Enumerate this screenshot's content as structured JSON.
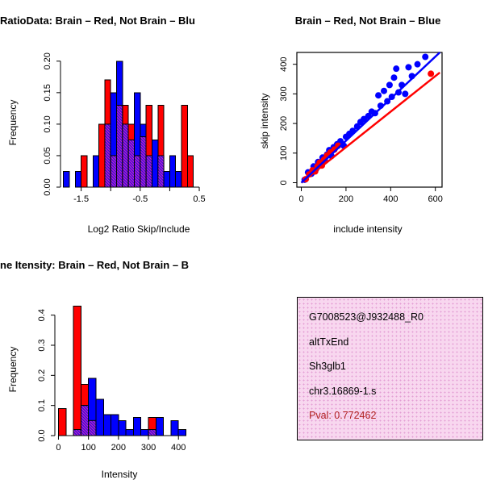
{
  "figure": {
    "background": "#FFFFFF"
  },
  "info_box": {
    "background": "#F8D7EF",
    "dot_color": "#E39FD4",
    "border_color": "#000000",
    "lines": [
      {
        "text": "G7008523@J932488_R0",
        "color": "#000000"
      },
      {
        "text": "altTxEnd",
        "color": "#000000"
      },
      {
        "text": "Sh3glb1",
        "color": "#000000"
      },
      {
        "text": "chr3.16869-1.s",
        "color": "#000000"
      },
      {
        "text": "Pval: 0.772462",
        "color": "#B22222"
      }
    ]
  },
  "chart_data": [
    {
      "id": "log2_ratio_histogram",
      "type": "bar",
      "variant": "overlaid-histograms",
      "title": "RatioData: Brain – Red, Not Brain – Blu",
      "xlabel": "Log2 Ratio Skip/Include",
      "ylabel": "Frequency",
      "xlim": [
        -1.85,
        0.65
      ],
      "ylim": [
        0,
        0.21
      ],
      "bin_width": 0.1,
      "xticks": [
        {
          "v": -1.5,
          "label": "-1.5"
        },
        {
          "v": -1.0,
          "label": ""
        },
        {
          "v": -0.5,
          "label": "-0.5"
        },
        {
          "v": 0.0,
          "label": ""
        },
        {
          "v": 0.5,
          "label": "0.5"
        }
      ],
      "yticks": [
        {
          "v": 0.0,
          "label": "0.00"
        },
        {
          "v": 0.05,
          "label": "0.05"
        },
        {
          "v": 0.1,
          "label": "0.10"
        },
        {
          "v": 0.15,
          "label": "0.15"
        },
        {
          "v": 0.2,
          "label": "0.20"
        }
      ],
      "overlap": {
        "fill": "#7A1FA2",
        "line": "#CC22CC"
      },
      "series": [
        {
          "name": "not_brain",
          "color": "#0000FF",
          "bins": [
            [
              -1.8,
              0.025
            ],
            [
              -1.6,
              0.025
            ],
            [
              -1.3,
              0.05
            ],
            [
              -1.1,
              0.1
            ],
            [
              -1.0,
              0.15
            ],
            [
              -0.9,
              0.2
            ],
            [
              -0.8,
              0.1
            ],
            [
              -0.7,
              0.075
            ],
            [
              -0.6,
              0.15
            ],
            [
              -0.5,
              0.1
            ],
            [
              -0.4,
              0.05
            ],
            [
              -0.3,
              0.075
            ],
            [
              -0.2,
              0.05
            ],
            [
              -0.1,
              0.025
            ],
            [
              0.0,
              0.05
            ],
            [
              0.1,
              0.025
            ]
          ]
        },
        {
          "name": "brain",
          "color": "#FF0000",
          "bins": [
            [
              -1.5,
              0.05
            ],
            [
              -1.2,
              0.1
            ],
            [
              -1.1,
              0.17
            ],
            [
              -1.0,
              0.05
            ],
            [
              -0.9,
              0.13
            ],
            [
              -0.8,
              0.13
            ],
            [
              -0.7,
              0.1
            ],
            [
              -0.6,
              0.05
            ],
            [
              -0.5,
              0.08
            ],
            [
              -0.4,
              0.13
            ],
            [
              -0.2,
              0.13
            ],
            [
              0.2,
              0.13
            ],
            [
              0.3,
              0.05
            ]
          ]
        }
      ]
    },
    {
      "id": "intensity_scatter",
      "type": "scatter",
      "title": "Brain – Red, Not Brain – Blue",
      "xlabel": "include intensity",
      "ylabel": "skip intensity",
      "xlim": [
        -20,
        630
      ],
      "ylim": [
        -15,
        440
      ],
      "xticks": [
        {
          "v": 0,
          "label": "0"
        },
        {
          "v": 200,
          "label": "200"
        },
        {
          "v": 400,
          "label": "400"
        },
        {
          "v": 600,
          "label": "600"
        }
      ],
      "yticks": [
        {
          "v": 0,
          "label": "0"
        },
        {
          "v": 100,
          "label": "100"
        },
        {
          "v": 200,
          "label": "200"
        },
        {
          "v": 300,
          "label": "300"
        },
        {
          "v": 400,
          "label": "400"
        }
      ],
      "series": [
        {
          "name": "not_brain",
          "color": "#0000FF",
          "points": [
            [
              15,
              10
            ],
            [
              30,
              35
            ],
            [
              45,
              30
            ],
            [
              55,
              55
            ],
            [
              65,
              45
            ],
            [
              75,
              70
            ],
            [
              85,
              60
            ],
            [
              95,
              85
            ],
            [
              105,
              75
            ],
            [
              115,
              95
            ],
            [
              125,
              110
            ],
            [
              135,
              90
            ],
            [
              145,
              120
            ],
            [
              160,
              130
            ],
            [
              175,
              140
            ],
            [
              190,
              125
            ],
            [
              200,
              155
            ],
            [
              215,
              165
            ],
            [
              230,
              175
            ],
            [
              250,
              190
            ],
            [
              265,
              205
            ],
            [
              280,
              215
            ],
            [
              300,
              225
            ],
            [
              315,
              240
            ],
            [
              330,
              235
            ],
            [
              345,
              295
            ],
            [
              355,
              260
            ],
            [
              370,
              310
            ],
            [
              385,
              275
            ],
            [
              395,
              330
            ],
            [
              405,
              290
            ],
            [
              415,
              355
            ],
            [
              425,
              385
            ],
            [
              435,
              305
            ],
            [
              450,
              330
            ],
            [
              465,
              300
            ],
            [
              480,
              390
            ],
            [
              495,
              360
            ],
            [
              520,
              400
            ],
            [
              555,
              425
            ]
          ]
        },
        {
          "name": "brain",
          "color": "#FF0000",
          "points": [
            [
              20,
              12
            ],
            [
              35,
              28
            ],
            [
              50,
              42
            ],
            [
              62,
              38
            ],
            [
              72,
              55
            ],
            [
              82,
              68
            ],
            [
              92,
              58
            ],
            [
              102,
              78
            ],
            [
              115,
              92
            ],
            [
              130,
              102
            ],
            [
              148,
              112
            ],
            [
              165,
              125
            ],
            [
              580,
              368
            ]
          ]
        }
      ],
      "lines": [
        {
          "name": "brain_fit",
          "color": "#FF0000",
          "x1": 0,
          "y1": 0,
          "x2": 620,
          "y2": 372
        },
        {
          "name": "not_brain_fit",
          "color": "#0000FF",
          "x1": 0,
          "y1": 0,
          "x2": 620,
          "y2": 440
        }
      ]
    },
    {
      "id": "gene_intensity_histogram",
      "type": "bar",
      "variant": "overlaid-histograms",
      "title": "ne Itensity: Brain – Red, Not Brain – B",
      "xlabel": "Intensity",
      "ylabel": "Frequency",
      "xlim": [
        -12,
        437
      ],
      "ylim": [
        0,
        0.45
      ],
      "bin_width": 25,
      "xticks": [
        {
          "v": 0,
          "label": "0"
        },
        {
          "v": 100,
          "label": "100"
        },
        {
          "v": 200,
          "label": "200"
        },
        {
          "v": 300,
          "label": "300"
        },
        {
          "v": 400,
          "label": "400"
        }
      ],
      "yticks": [
        {
          "v": 0.0,
          "label": "0.0"
        },
        {
          "v": 0.1,
          "label": "0.1"
        },
        {
          "v": 0.2,
          "label": "0.2"
        },
        {
          "v": 0.3,
          "label": "0.3"
        },
        {
          "v": 0.4,
          "label": "0.4"
        }
      ],
      "overlap": {
        "fill": "#7A1FA2",
        "line": "#CC22CC"
      },
      "series": [
        {
          "name": "not_brain",
          "color": "#0000FF",
          "bins": [
            [
              50,
              0.02
            ],
            [
              75,
              0.1
            ],
            [
              100,
              0.19
            ],
            [
              125,
              0.12
            ],
            [
              150,
              0.07
            ],
            [
              175,
              0.07
            ],
            [
              200,
              0.05
            ],
            [
              225,
              0.02
            ],
            [
              250,
              0.06
            ],
            [
              275,
              0.02
            ],
            [
              300,
              0.02
            ],
            [
              325,
              0.06
            ],
            [
              375,
              0.05
            ],
            [
              400,
              0.02
            ]
          ]
        },
        {
          "name": "brain",
          "color": "#FF0000",
          "bins": [
            [
              0,
              0.09
            ],
            [
              50,
              0.43
            ],
            [
              75,
              0.17
            ],
            [
              100,
              0.05
            ],
            [
              300,
              0.06
            ]
          ]
        }
      ]
    }
  ]
}
